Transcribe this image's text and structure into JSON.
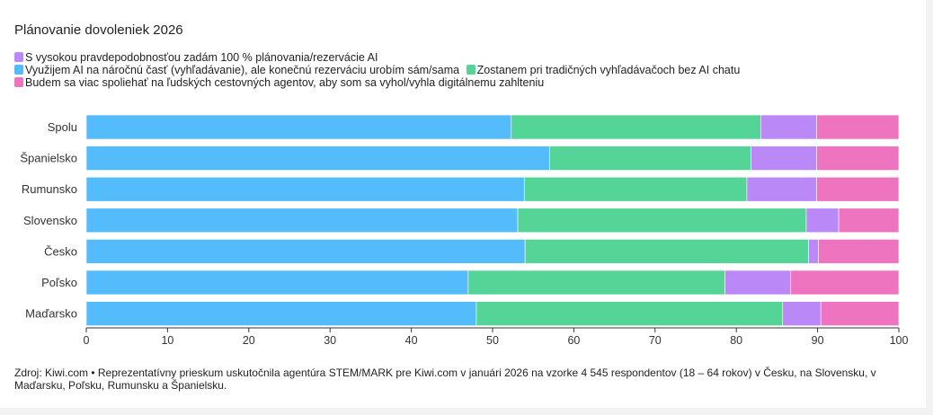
{
  "chart_data": {
    "type": "bar",
    "orientation": "horizontal",
    "stacked": true,
    "title": "Plánovanie dovoleniek 2026",
    "categories": [
      "Spolu",
      "Španielsko",
      "Rumunsko",
      "Slovensko",
      "Česko",
      "Poľsko",
      "Maďarsko"
    ],
    "series": [
      {
        "name": "Využijem AI na náročnú časť (vyhľadávanie), ale konečnú rezerváciu urobím sám/sama",
        "color": "#54bcfb",
        "values": [
          52.3,
          57.0,
          53.9,
          53.1,
          54.0,
          47.0,
          48.0
        ]
      },
      {
        "name": "Zostanem pri tradičných vyhľadávačoch bez AI chatu",
        "color": "#55d497",
        "values": [
          30.7,
          24.8,
          27.4,
          35.5,
          34.9,
          31.6,
          37.7
        ]
      },
      {
        "name": "Budem sa viac spoliehať na ľudských cestovných agentov, aby som sa vyhol/vyhla digitálnemu zahlteniu",
        "color": "#ee74bf",
        "values": [
          10.1,
          10.1,
          10.1,
          7.4,
          9.9,
          13.3,
          9.6
        ]
      },
      {
        "name": "S vysokou pravdepodobnosťou zadám 100 % plánovania/rezervácie AI",
        "color": "#bb88f8",
        "values": [
          6.9,
          8.1,
          8.6,
          4.0,
          1.2,
          8.1,
          4.7
        ]
      }
    ],
    "stack_order": [
      0,
      1,
      3,
      2
    ],
    "stack_order_overrides": {
      "Rumunsko": [
        0,
        1,
        3,
        2
      ]
    },
    "xlim": [
      0,
      100
    ],
    "xticks": [
      0,
      10,
      20,
      30,
      40,
      50,
      60,
      70,
      80,
      90,
      100
    ],
    "grid": false,
    "legend_placement": "top-left"
  },
  "legend": {
    "row1": [
      {
        "label": "S vysokou pravdepodobnosťou zadám 100 % plánovania/rezervácie AI",
        "color": "#bb88f8"
      }
    ],
    "row2": [
      {
        "label": "Využijem AI na náročnú časť (vyhľadávanie), ale konečnú rezerváciu urobím sám/sama",
        "color": "#54bcfb"
      },
      {
        "label": "Zostanem pri tradičných vyhľadávačoch bez AI chatu",
        "color": "#55d497"
      }
    ],
    "row3": [
      {
        "label": "Budem sa viac spoliehať na ľudských cestovných agentov, aby som sa vyhol/vyhla digitálnemu zahlteniu",
        "color": "#ee74bf"
      }
    ]
  },
  "source": "Zdroj: Kiwi.com • Reprezentatívny prieskum uskutočnila agentúra STEM/MARK pre Kiwi.com v januári 2026 na vzorke 4 545 respondentov (18 – 64 rokov) v Česku, na Slovensku, v Maďarsku, Poľsku, Rumunsku a Španielsku."
}
